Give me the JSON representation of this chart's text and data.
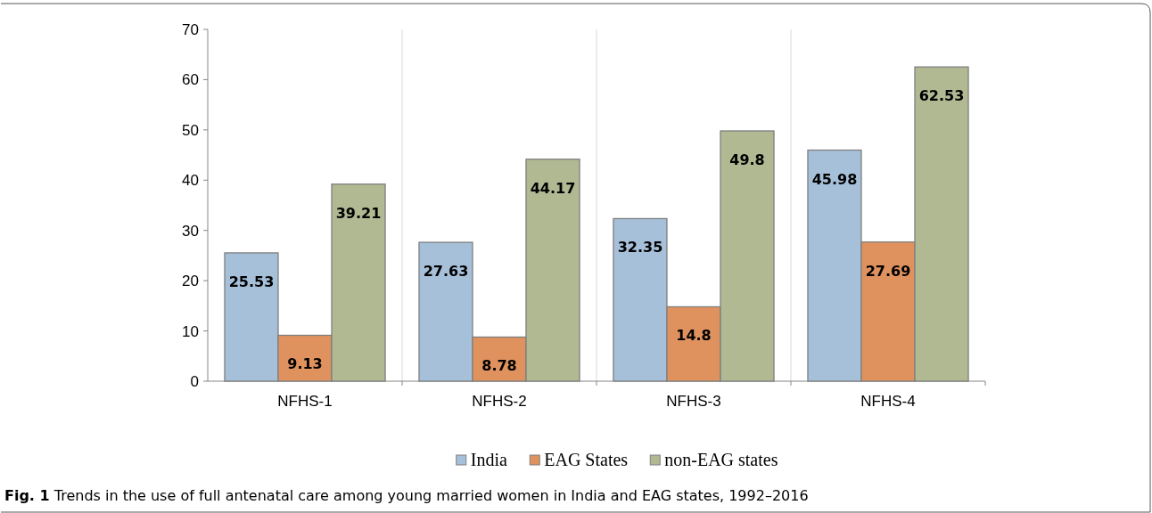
{
  "chart_data": {
    "type": "bar",
    "title": "Fig. 1 Trends in the use of full antenatal care among young married women in India and EAG states, 1992–2016",
    "categories": [
      "NFHS-1",
      "NFHS-2",
      "NFHS-3",
      "NFHS-4"
    ],
    "series": [
      {
        "name": "India",
        "color": "#a7c0da",
        "values": [
          25.53,
          27.63,
          32.35,
          45.98
        ]
      },
      {
        "name": "EAG States",
        "color": "#e0925e",
        "values": [
          9.13,
          8.78,
          14.8,
          27.69
        ]
      },
      {
        "name": "non-EAG states",
        "color": "#b1b993",
        "values": [
          39.21,
          44.17,
          49.8,
          62.53
        ]
      }
    ],
    "ylim": [
      0,
      70
    ],
    "yticks": [
      0,
      10,
      20,
      30,
      40,
      50,
      60,
      70
    ],
    "grid": "x",
    "legend": "bottom",
    "data_labels": true
  }
}
